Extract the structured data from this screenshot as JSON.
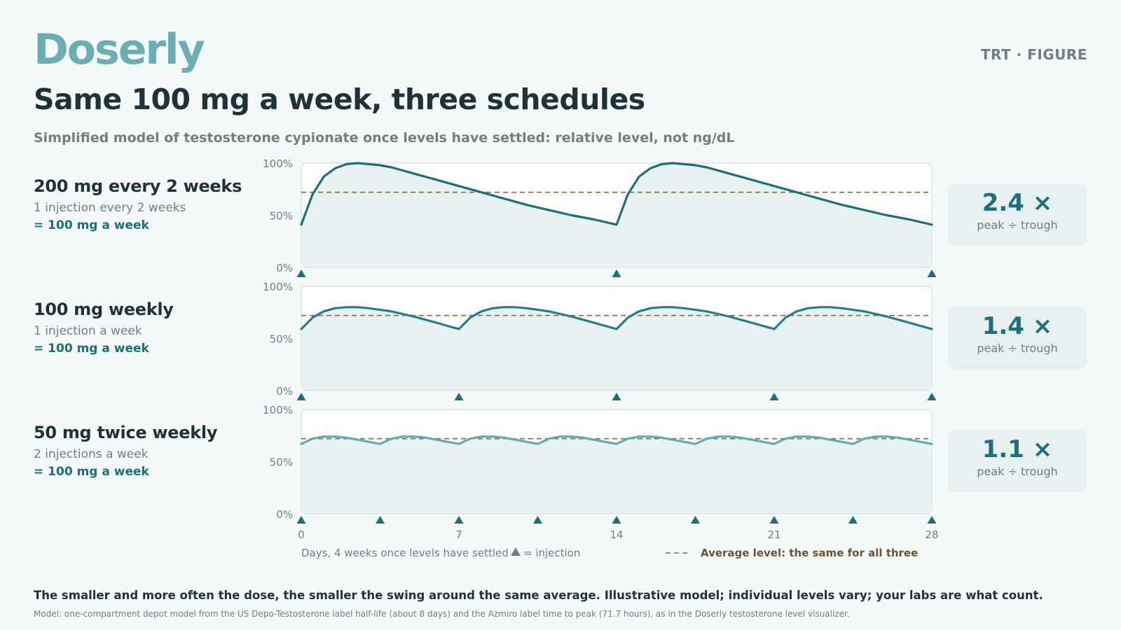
{
  "header": {
    "brand": "Doserly",
    "tag": "TRT · FIGURE",
    "title": "Same 100 mg a week, three schedules",
    "subtitle": "Simplified model of testosterone cypionate once levels have settled: relative level, not ng/dL"
  },
  "rows": [
    {
      "name": "200 mg every 2 weeks",
      "sub": "1 injection every 2 weeks",
      "eq": "= 100 mg a week",
      "ratio": "2.4 ×",
      "ratio_caption": "peak ÷ trough"
    },
    {
      "name": "100 mg weekly",
      "sub": "1 injection a week",
      "eq": "= 100 mg a week",
      "ratio": "1.4 ×",
      "ratio_caption": "peak ÷ trough"
    },
    {
      "name": "50 mg twice weekly",
      "sub": "2 injections a week",
      "eq": "= 100 mg a week",
      "ratio": "1.1 ×",
      "ratio_caption": "peak ÷ trough"
    }
  ],
  "chart_data": {
    "type": "line",
    "x_ticks": [
      0,
      7,
      14,
      21,
      28
    ],
    "y_ticks": [
      "0%",
      "50%",
      "100%"
    ],
    "xlim": [
      0,
      28
    ],
    "ylim": [
      0,
      100
    ],
    "xlabel": "Days, 4 weeks once levels have settled",
    "injection_legend": "= injection",
    "average_legend": "Average level: the same for all three",
    "average_level": 72,
    "grid": true,
    "series": [
      {
        "name": "200 mg every 2 weeks",
        "color": "#1f6e7a",
        "injection_days": [
          0,
          14,
          28
        ],
        "x": [
          0,
          0.5,
          1,
          1.5,
          2,
          2.5,
          3,
          3.5,
          4,
          5,
          6,
          7,
          8,
          9,
          10,
          11,
          12,
          13,
          14,
          14.5,
          15,
          15.5,
          16,
          16.5,
          17,
          17.5,
          18,
          19,
          20,
          21,
          22,
          23,
          24,
          25,
          26,
          27,
          28
        ],
        "y": [
          41,
          70,
          87,
          95,
          99,
          100,
          99,
          98,
          96,
          90,
          84,
          78,
          72,
          66,
          60,
          55,
          50,
          46,
          41,
          70,
          87,
          95,
          99,
          100,
          99,
          98,
          96,
          90,
          84,
          78,
          72,
          66,
          60,
          55,
          50,
          46,
          41
        ]
      },
      {
        "name": "100 mg weekly",
        "color": "#2a7c88",
        "injection_days": [
          0,
          7,
          14,
          21,
          28
        ],
        "x": [
          0,
          0.5,
          1,
          1.5,
          2,
          2.5,
          3,
          4,
          5,
          6,
          7,
          7.5,
          8,
          8.5,
          9,
          9.5,
          10,
          11,
          12,
          13,
          14,
          14.5,
          15,
          15.5,
          16,
          16.5,
          17,
          18,
          19,
          20,
          21,
          21.5,
          22,
          22.5,
          23,
          23.5,
          24,
          25,
          26,
          27,
          28
        ],
        "y": [
          59,
          70,
          76,
          79,
          80,
          80,
          79,
          76,
          71,
          65,
          59,
          70,
          76,
          79,
          80,
          80,
          79,
          76,
          71,
          65,
          59,
          70,
          76,
          79,
          80,
          80,
          79,
          76,
          71,
          65,
          59,
          70,
          76,
          79,
          80,
          80,
          79,
          76,
          71,
          65,
          59
        ]
      },
      {
        "name": "50 mg twice weekly",
        "color": "#62aab2",
        "injection_days": [
          0,
          3.5,
          7,
          10.5,
          14,
          17.5,
          21,
          24.5,
          28
        ],
        "x": [
          0,
          0.5,
          1,
          1.5,
          2,
          2.5,
          3,
          3.5,
          4,
          4.5,
          5,
          5.5,
          6,
          6.5,
          7,
          7.5,
          8,
          8.5,
          9,
          9.5,
          10,
          10.5,
          11,
          11.5,
          12,
          12.5,
          13,
          13.5,
          14,
          14.5,
          15,
          15.5,
          16,
          16.5,
          17,
          17.5,
          18,
          18.5,
          19,
          19.5,
          20,
          20.5,
          21,
          21.5,
          22,
          22.5,
          23,
          23.5,
          24,
          24.5,
          25,
          25.5,
          26,
          26.5,
          27,
          27.5,
          28
        ],
        "y": [
          67,
          72,
          74,
          74,
          73,
          71,
          69,
          67,
          72,
          74,
          74,
          73,
          71,
          69,
          67,
          72,
          74,
          74,
          73,
          71,
          69,
          67,
          72,
          74,
          74,
          73,
          71,
          69,
          67,
          72,
          74,
          74,
          73,
          71,
          69,
          67,
          72,
          74,
          74,
          73,
          71,
          69,
          67,
          72,
          74,
          74,
          73,
          71,
          69,
          67,
          72,
          74,
          74,
          73,
          71,
          69,
          67
        ]
      }
    ]
  },
  "footer": {
    "main": "The smaller and more often the dose, the smaller the swing around the same average. Illustrative model; individual levels vary; your labs are what count.",
    "note": "Model: one-compartment depot model from the US Depo-Testosterone label half-life (about 8 days) and the Azmiro label time to peak (71.7 hours), as in the Doserly testosterone level visualizer."
  }
}
